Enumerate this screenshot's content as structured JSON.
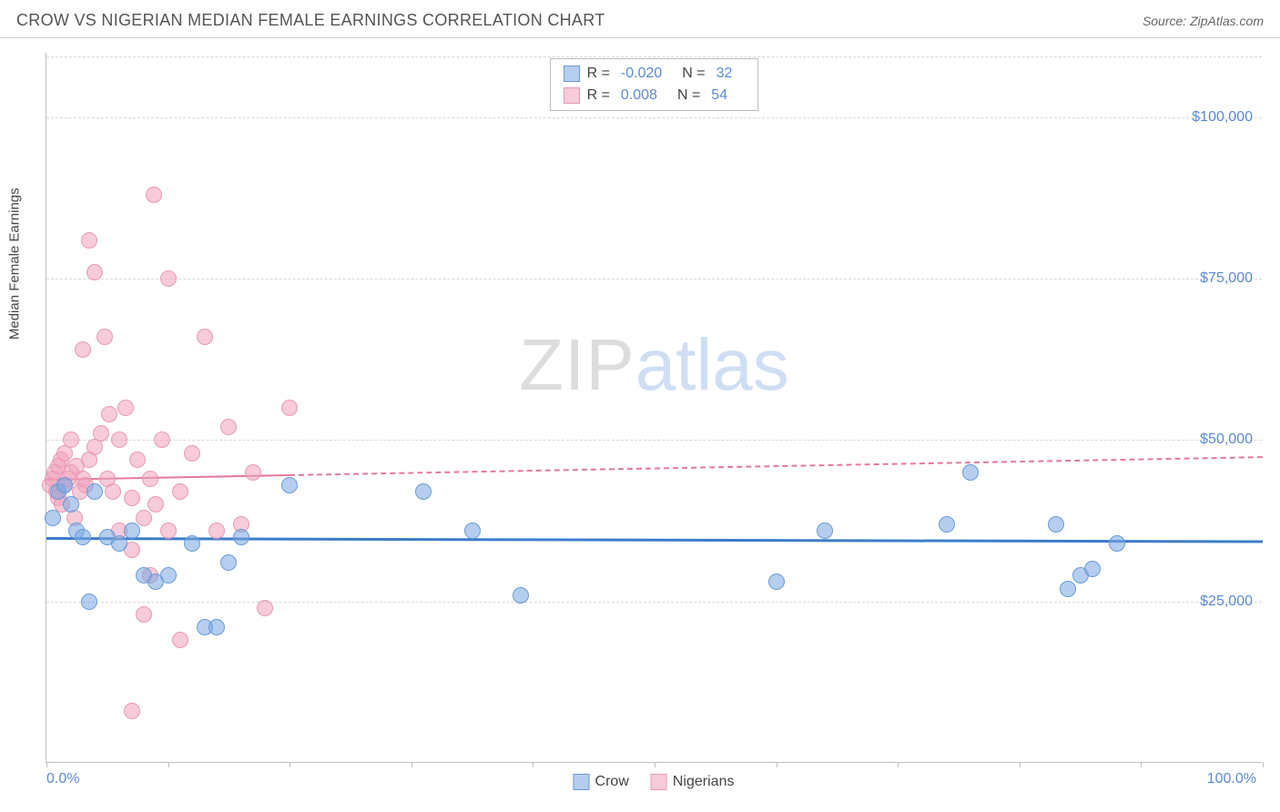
{
  "title": "CROW VS NIGERIAN MEDIAN FEMALE EARNINGS CORRELATION CHART",
  "source_label": "Source: ZipAtlas.com",
  "y_axis_title": "Median Female Earnings",
  "watermark": {
    "part1": "ZIP",
    "part2": "atlas"
  },
  "colors": {
    "blue_fill": "rgba(120,165,225,0.55)",
    "blue_stroke": "#6a9bd8",
    "pink_fill": "rgba(240,160,185,0.55)",
    "pink_stroke": "#e89ab5",
    "axis_label": "#5b8bd4",
    "grid": "#d8d8d8",
    "trend_blue": "#3d7cc9",
    "trend_pink": "#e27a9e"
  },
  "legend_top": {
    "rows": [
      {
        "swatch": "blue",
        "r_label": "R =",
        "r_val": "-0.020",
        "n_label": "N =",
        "n_val": "32"
      },
      {
        "swatch": "pink",
        "r_label": "R =",
        "r_val": "0.008",
        "n_label": "N =",
        "n_val": "54"
      }
    ]
  },
  "legend_bottom": [
    {
      "swatch": "blue",
      "label": "Crow"
    },
    {
      "swatch": "pink",
      "label": "Nigerians"
    }
  ],
  "chart": {
    "type": "scatter",
    "xlim": [
      0,
      100
    ],
    "ylim": [
      0,
      110000
    ],
    "y_gridlines": [
      25000,
      50000,
      75000,
      100000
    ],
    "y_tick_labels": [
      "$25,000",
      "$50,000",
      "$75,000",
      "$100,000"
    ],
    "x_ticks_at": [
      0,
      10,
      20,
      30,
      40,
      50,
      60,
      70,
      80,
      90,
      100
    ],
    "x_labels": {
      "0": "0.0%",
      "100": "100.0%"
    },
    "trend_lines": [
      {
        "series": "blue",
        "y1": 35000,
        "y2": 34500,
        "x1": 0,
        "x2": 100,
        "width": 3,
        "dash": false
      },
      {
        "series": "pink",
        "y1": 44000,
        "y2": 47500,
        "x1": 0,
        "x2": 100,
        "width": 2,
        "dash_after_x": 20
      }
    ],
    "points_blue": [
      {
        "x": 0.5,
        "y": 38000
      },
      {
        "x": 1,
        "y": 42000
      },
      {
        "x": 1.5,
        "y": 43000
      },
      {
        "x": 2,
        "y": 40000
      },
      {
        "x": 2.5,
        "y": 36000
      },
      {
        "x": 3,
        "y": 35000
      },
      {
        "x": 3.5,
        "y": 25000
      },
      {
        "x": 4,
        "y": 42000
      },
      {
        "x": 5,
        "y": 35000
      },
      {
        "x": 6,
        "y": 34000
      },
      {
        "x": 7,
        "y": 36000
      },
      {
        "x": 8,
        "y": 29000
      },
      {
        "x": 9,
        "y": 28000
      },
      {
        "x": 10,
        "y": 29000
      },
      {
        "x": 12,
        "y": 34000
      },
      {
        "x": 13,
        "y": 21000
      },
      {
        "x": 14,
        "y": 21000
      },
      {
        "x": 15,
        "y": 31000
      },
      {
        "x": 16,
        "y": 35000
      },
      {
        "x": 20,
        "y": 43000
      },
      {
        "x": 31,
        "y": 42000
      },
      {
        "x": 35,
        "y": 36000
      },
      {
        "x": 39,
        "y": 26000
      },
      {
        "x": 60,
        "y": 28000
      },
      {
        "x": 64,
        "y": 36000
      },
      {
        "x": 74,
        "y": 37000
      },
      {
        "x": 76,
        "y": 45000
      },
      {
        "x": 83,
        "y": 37000
      },
      {
        "x": 84,
        "y": 27000
      },
      {
        "x": 85,
        "y": 29000
      },
      {
        "x": 86,
        "y": 30000
      },
      {
        "x": 88,
        "y": 34000
      }
    ],
    "points_pink": [
      {
        "x": 0.3,
        "y": 43000
      },
      {
        "x": 0.5,
        "y": 44000
      },
      {
        "x": 0.7,
        "y": 45000
      },
      {
        "x": 0.8,
        "y": 42000
      },
      {
        "x": 1,
        "y": 46000
      },
      {
        "x": 1,
        "y": 41000
      },
      {
        "x": 1.2,
        "y": 47000
      },
      {
        "x": 1.3,
        "y": 40000
      },
      {
        "x": 1.5,
        "y": 48000
      },
      {
        "x": 1.5,
        "y": 43000
      },
      {
        "x": 1.8,
        "y": 44000
      },
      {
        "x": 2,
        "y": 45000
      },
      {
        "x": 2,
        "y": 50000
      },
      {
        "x": 2.3,
        "y": 38000
      },
      {
        "x": 2.5,
        "y": 46000
      },
      {
        "x": 2.8,
        "y": 42000
      },
      {
        "x": 3,
        "y": 44000
      },
      {
        "x": 3,
        "y": 64000
      },
      {
        "x": 3.2,
        "y": 43000
      },
      {
        "x": 3.5,
        "y": 47000
      },
      {
        "x": 3.5,
        "y": 81000
      },
      {
        "x": 4,
        "y": 49000
      },
      {
        "x": 4,
        "y": 76000
      },
      {
        "x": 4.5,
        "y": 51000
      },
      {
        "x": 4.8,
        "y": 66000
      },
      {
        "x": 5,
        "y": 44000
      },
      {
        "x": 5.2,
        "y": 54000
      },
      {
        "x": 5.5,
        "y": 42000
      },
      {
        "x": 6,
        "y": 50000
      },
      {
        "x": 6,
        "y": 36000
      },
      {
        "x": 6.5,
        "y": 55000
      },
      {
        "x": 7,
        "y": 41000
      },
      {
        "x": 7,
        "y": 33000
      },
      {
        "x": 7,
        "y": 8000
      },
      {
        "x": 7.5,
        "y": 47000
      },
      {
        "x": 8,
        "y": 38000
      },
      {
        "x": 8,
        "y": 23000
      },
      {
        "x": 8.5,
        "y": 44000
      },
      {
        "x": 8.5,
        "y": 29000
      },
      {
        "x": 8.8,
        "y": 88000
      },
      {
        "x": 9,
        "y": 40000
      },
      {
        "x": 9.5,
        "y": 50000
      },
      {
        "x": 10,
        "y": 36000
      },
      {
        "x": 10,
        "y": 75000
      },
      {
        "x": 11,
        "y": 42000
      },
      {
        "x": 11,
        "y": 19000
      },
      {
        "x": 12,
        "y": 48000
      },
      {
        "x": 13,
        "y": 66000
      },
      {
        "x": 14,
        "y": 36000
      },
      {
        "x": 15,
        "y": 52000
      },
      {
        "x": 16,
        "y": 37000
      },
      {
        "x": 17,
        "y": 45000
      },
      {
        "x": 18,
        "y": 24000
      },
      {
        "x": 20,
        "y": 55000
      }
    ]
  }
}
